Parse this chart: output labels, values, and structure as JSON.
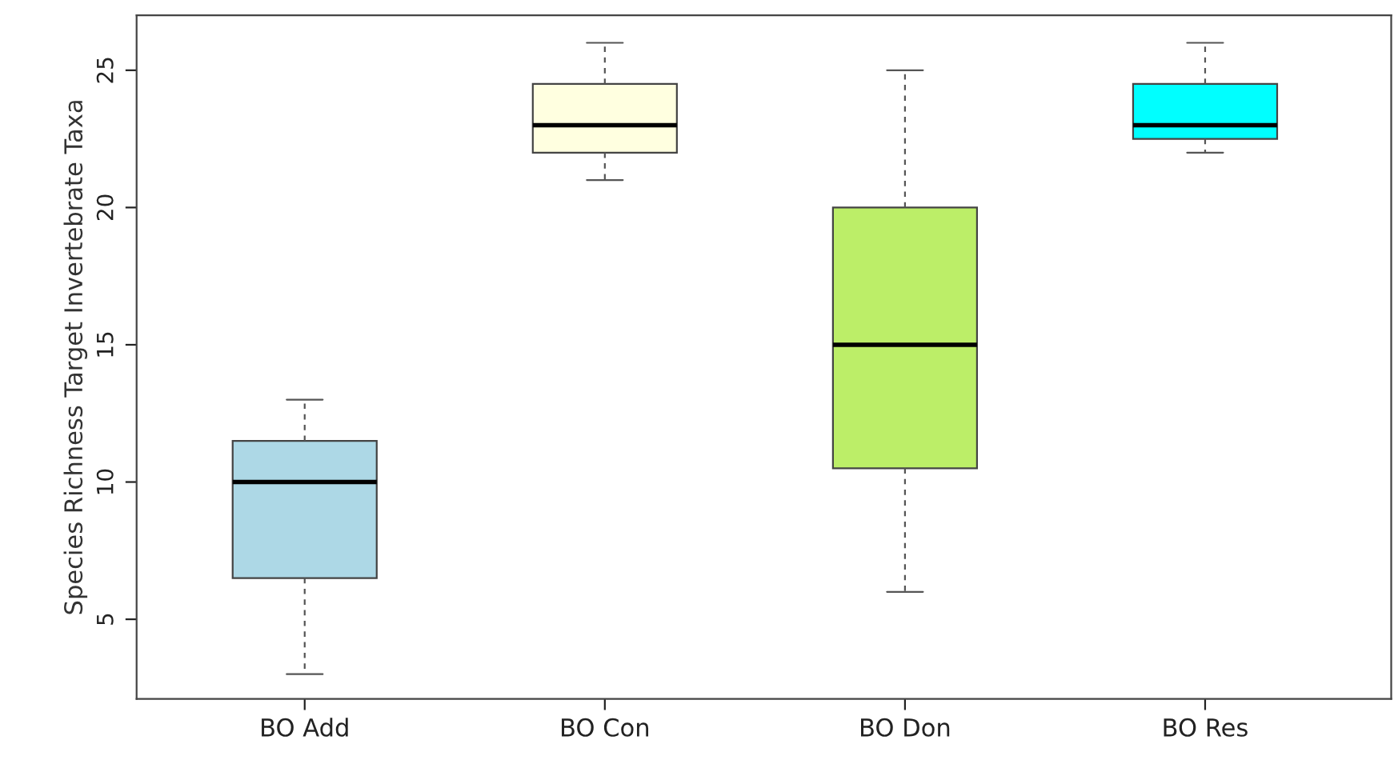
{
  "chart_data": {
    "type": "box",
    "ylabel": "Species Richness Target Invertebrate Taxa",
    "categories": [
      "BO Add",
      "BO Con",
      "BO Don",
      "BO Res"
    ],
    "colors": [
      "#add8e6",
      "#ffffe0",
      "#bcee68",
      "#00ffff"
    ],
    "boxes": [
      {
        "low": 3,
        "q1": 6.5,
        "median": 10,
        "q3": 11.5,
        "high": 13
      },
      {
        "low": 21,
        "q1": 22,
        "median": 23,
        "q3": 24.5,
        "high": 26
      },
      {
        "low": 6,
        "q1": 10.5,
        "median": 15,
        "q3": 20,
        "high": 25
      },
      {
        "low": 22,
        "q1": 22.5,
        "median": 23,
        "q3": 24.5,
        "high": 26
      }
    ],
    "ylim": [
      2.1,
      27.0
    ],
    "yticks": [
      5,
      10,
      15,
      20,
      25
    ],
    "grid": false,
    "legend": false
  }
}
